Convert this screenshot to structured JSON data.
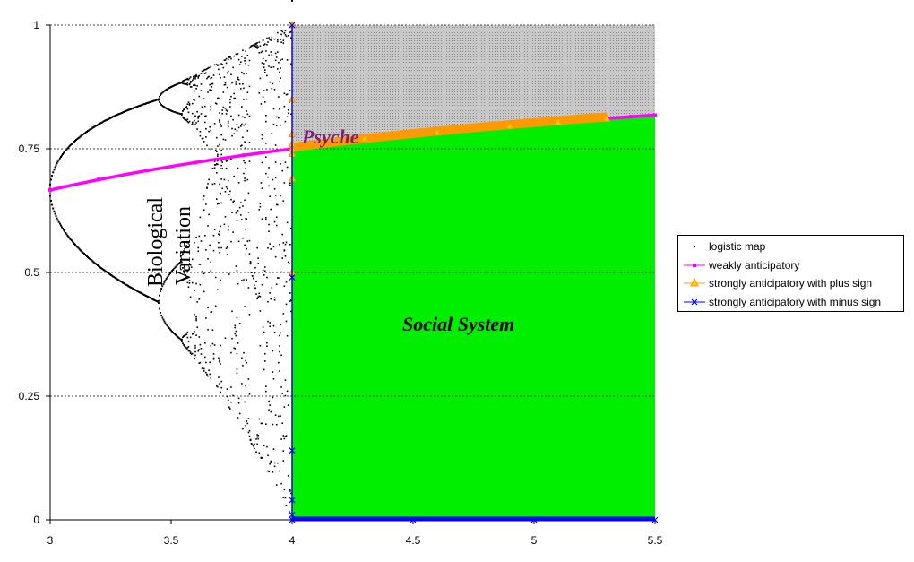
{
  "chart_data": {
    "type": "scatter",
    "title": "",
    "xlabel": "",
    "ylabel": "",
    "xlim": [
      3,
      5.5
    ],
    "ylim": [
      0,
      1
    ],
    "x_ticks": [
      "3",
      "3.5",
      "4",
      "4.5",
      "5",
      "5.5"
    ],
    "y_ticks": [
      "0",
      "0.25",
      "0.5",
      "0.75",
      "1"
    ],
    "grid": "horizontal dashed",
    "legend_position": "right",
    "series": [
      {
        "name": "logistic map",
        "marker": "dot",
        "color": "#000000",
        "description_values": "bifurcation diagram x = 1 - 1/a for a<3, period doubling ~3.0-3.57, chaos 3.57-4.0"
      },
      {
        "name": "weakly anticipatory",
        "marker": "small square",
        "color": "#ff00ff",
        "x": [
          3.0,
          3.2,
          3.4,
          3.6,
          3.8,
          4.0,
          4.2,
          4.4,
          4.6,
          4.8,
          5.0,
          5.2,
          5.4,
          5.5
        ],
        "y": [
          0.667,
          0.688,
          0.706,
          0.722,
          0.737,
          0.75,
          0.762,
          0.773,
          0.783,
          0.792,
          0.8,
          0.808,
          0.815,
          0.818
        ]
      },
      {
        "name": "strongly anticipatory with plus sign",
        "marker": "triangle",
        "color": "#ff9900",
        "x": [
          4.0,
          4.0,
          4.0,
          4.0,
          4.0,
          4.0,
          4.0,
          4.0,
          4.3,
          4.6,
          4.9,
          5.1,
          5.3
        ],
        "y": [
          1.0,
          0.85,
          0.78,
          0.76,
          0.74,
          0.69,
          0.5,
          0.75,
          0.771,
          0.783,
          0.796,
          0.804,
          0.811
        ]
      },
      {
        "name": "strongly anticipatory with minus sign",
        "marker": "x",
        "color": "#0000ff",
        "x": [
          4.0,
          4.0,
          4.0,
          4.0,
          4.0,
          4.0,
          4.5,
          5.0,
          5.5
        ],
        "y": [
          1.0,
          0.49,
          0.14,
          0.04,
          0.01,
          0.0,
          0.0,
          0.0,
          0.0
        ]
      }
    ],
    "annotations": [
      "Psyche",
      "Biological Variation",
      "Social System"
    ],
    "regions": {
      "green": "#00ee00",
      "gray": "#c0c0c0"
    }
  },
  "annotation_psyche": "Psyche",
  "annotation_bio_1": "Biological",
  "annotation_bio_2": "Variation",
  "annotation_social": "Social System",
  "legend": [
    {
      "label": "logistic map",
      "color": "#000000",
      "marker": "dot"
    },
    {
      "label": "weakly anticipatory",
      "color": "#ff00ff",
      "marker": "square"
    },
    {
      "label": "strongly anticipatory with plus sign",
      "color": "#ff9900",
      "marker": "triangle"
    },
    {
      "label": "strongly anticipatory with minus sign",
      "color": "#0000ff",
      "marker": "x"
    }
  ]
}
